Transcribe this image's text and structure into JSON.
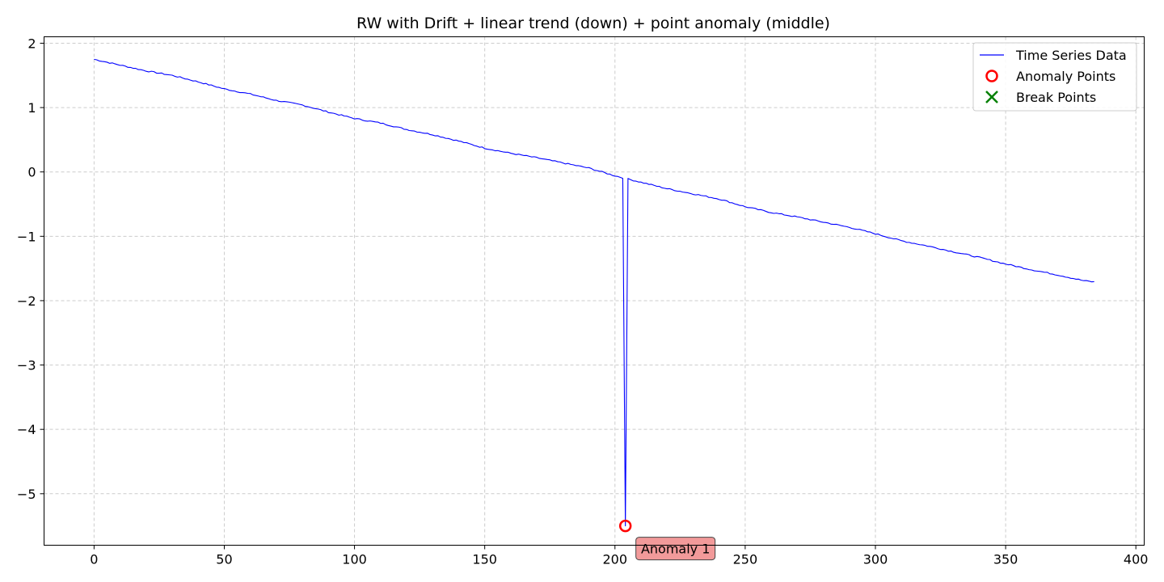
{
  "chart_data": {
    "type": "line",
    "title": "RW with Drift + linear trend (down) + point anomaly (middle)",
    "xlabel": "",
    "ylabel": "",
    "xlim": [
      -19.2,
      403.2
    ],
    "ylim": [
      -5.8,
      2.1
    ],
    "xticks": [
      0,
      50,
      100,
      150,
      200,
      250,
      300,
      350,
      400
    ],
    "xtick_labels": [
      "0",
      "50",
      "100",
      "150",
      "200",
      "250",
      "300",
      "350",
      "400"
    ],
    "yticks": [
      -5,
      -4,
      -3,
      -2,
      -1,
      0,
      1,
      2
    ],
    "ytick_labels": [
      "−5",
      "−4",
      "−3",
      "−2",
      "−1",
      "0",
      "1",
      "2"
    ],
    "grid": true,
    "legend_position": "top-right",
    "series": [
      {
        "name": "Time Series Data",
        "color": "#0000ff",
        "x_range": [
          0,
          384
        ],
        "anchors": [
          [
            0,
            1.75
          ],
          [
            10,
            1.66
          ],
          [
            20,
            1.57
          ],
          [
            30,
            1.5
          ],
          [
            40,
            1.4
          ],
          [
            50,
            1.29
          ],
          [
            60,
            1.21
          ],
          [
            70,
            1.11
          ],
          [
            80,
            1.04
          ],
          [
            90,
            0.93
          ],
          [
            100,
            0.83
          ],
          [
            110,
            0.76
          ],
          [
            120,
            0.66
          ],
          [
            130,
            0.58
          ],
          [
            140,
            0.48
          ],
          [
            150,
            0.37
          ],
          [
            160,
            0.29
          ],
          [
            170,
            0.22
          ],
          [
            180,
            0.14
          ],
          [
            190,
            0.06
          ],
          [
            200,
            -0.06
          ],
          [
            203,
            -0.09
          ],
          [
            205,
            -0.11
          ],
          [
            210,
            -0.16
          ],
          [
            220,
            -0.26
          ],
          [
            230,
            -0.34
          ],
          [
            240,
            -0.42
          ],
          [
            250,
            -0.54
          ],
          [
            260,
            -0.63
          ],
          [
            270,
            -0.7
          ],
          [
            280,
            -0.78
          ],
          [
            290,
            -0.86
          ],
          [
            300,
            -0.96
          ],
          [
            310,
            -1.07
          ],
          [
            320,
            -1.15
          ],
          [
            330,
            -1.24
          ],
          [
            340,
            -1.33
          ],
          [
            350,
            -1.43
          ],
          [
            360,
            -1.52
          ],
          [
            370,
            -1.6
          ],
          [
            380,
            -1.69
          ],
          [
            384,
            -1.71
          ]
        ],
        "spike": {
          "x": 204,
          "y": -5.5
        }
      }
    ],
    "anomaly_points": [
      {
        "x": 204,
        "y": -5.5,
        "label": "Anomaly 1"
      }
    ],
    "break_points": [],
    "legend": [
      {
        "label": "Time Series Data",
        "marker": "line",
        "color": "#0000ff"
      },
      {
        "label": "Anomaly Points",
        "marker": "circle",
        "color": "#ff0000"
      },
      {
        "label": "Break Points",
        "marker": "x",
        "color": "#008000"
      }
    ]
  }
}
